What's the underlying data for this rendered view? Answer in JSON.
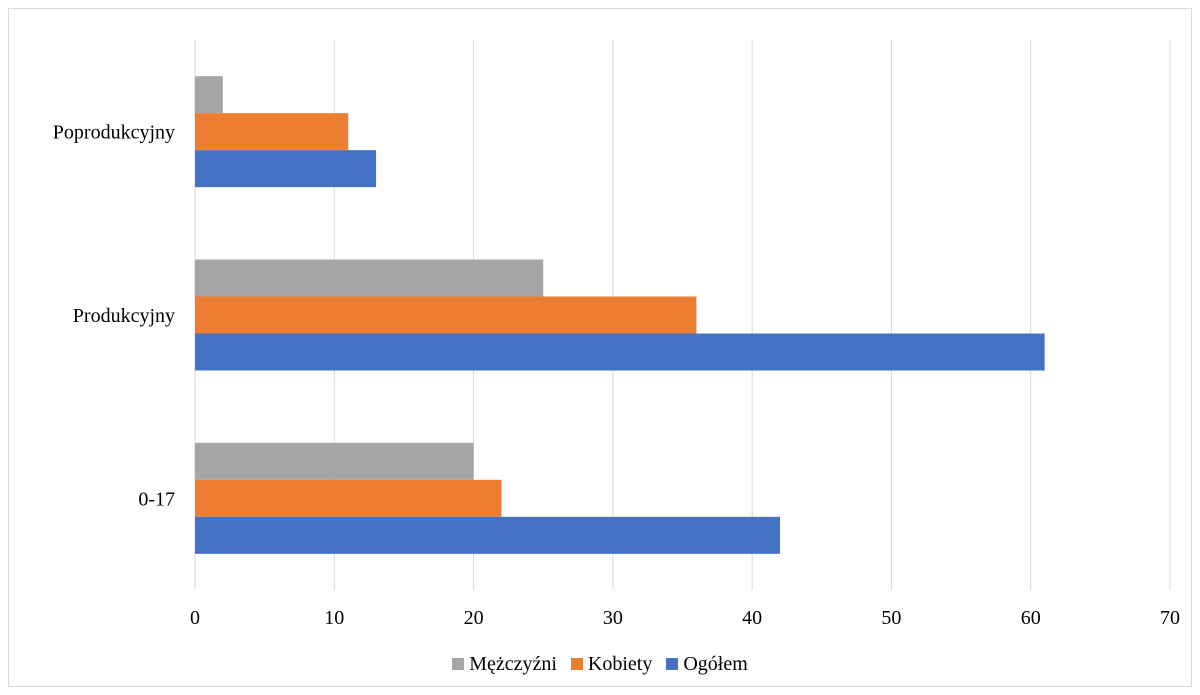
{
  "chart_data": {
    "type": "bar",
    "orientation": "horizontal",
    "categories": [
      "Poprodukcyjny",
      "Produkcyjny",
      "0-17"
    ],
    "series": [
      {
        "name": "Mężczyźni",
        "color": "#a5a5a5",
        "values": [
          2,
          25,
          20
        ]
      },
      {
        "name": "Kobiety",
        "color": "#ed7d31",
        "values": [
          11,
          36,
          22
        ]
      },
      {
        "name": "Ogółem",
        "color": "#4472c4",
        "values": [
          13,
          61,
          42
        ]
      }
    ],
    "xlim": [
      0,
      70
    ],
    "xticks": [
      "0",
      "10",
      "20",
      "30",
      "40",
      "50",
      "60",
      "70"
    ],
    "grid": true,
    "legend_position": "bottom"
  }
}
